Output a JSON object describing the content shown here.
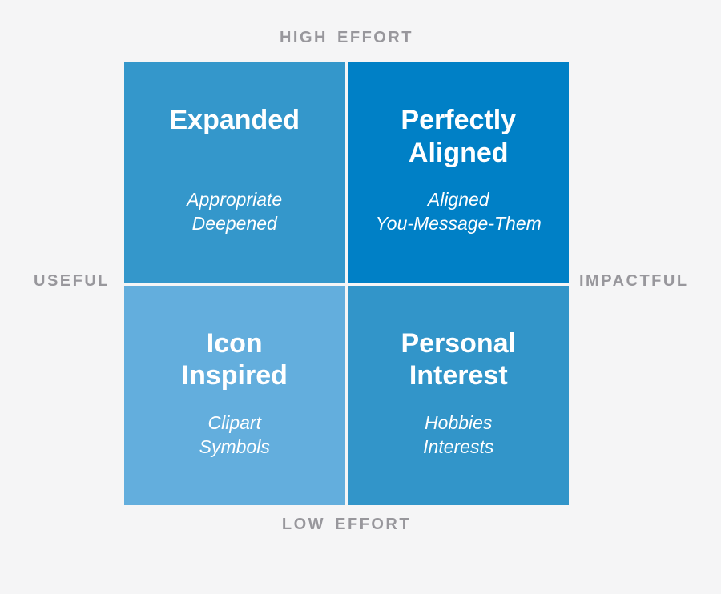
{
  "canvas": {
    "background_color": "#f5f5f6",
    "divider_color": "#ffffff",
    "axis_label_color": "#98979c",
    "quadrant_text_color": "#ffffff"
  },
  "matrix": {
    "axis_labels": {
      "top": "HIGH EFFORT",
      "bottom": "LOW EFFORT",
      "left": "USEFUL",
      "right": "IMPACTFUL"
    },
    "quadrants": [
      {
        "position": "top-left",
        "title": "Expanded",
        "subtitle": "Appropriate\nDeepened",
        "color": "#3497cb"
      },
      {
        "position": "top-right",
        "title": "Perfectly\nAligned",
        "subtitle": "Aligned\nYou-Message-Them",
        "color": "#0080c6"
      },
      {
        "position": "bottom-left",
        "title": "Icon\nInspired",
        "subtitle": "Clipart\nSymbols",
        "color": "#63aedd"
      },
      {
        "position": "bottom-right",
        "title": "Personal\nInterest",
        "subtitle": "Hobbies\nInterests",
        "color": "#3295c9"
      }
    ]
  }
}
